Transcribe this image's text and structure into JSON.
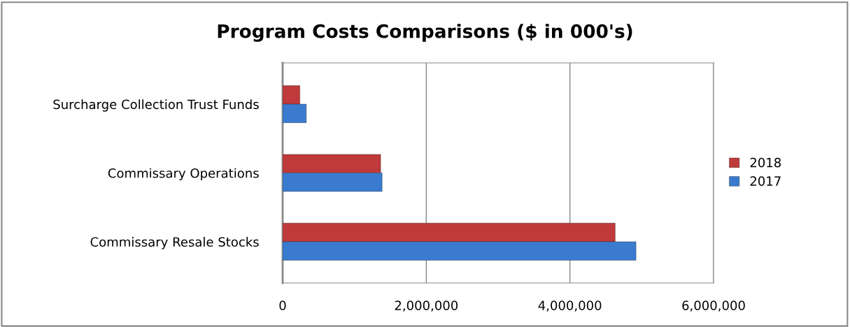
{
  "chart_data": {
    "type": "bar",
    "orientation": "horizontal",
    "title": "Program Costs Comparisons ($ in 000's)",
    "categories": [
      "Surcharge Collection Trust Funds",
      "Commissary Operations",
      "Commissary Resale Stocks"
    ],
    "series": [
      {
        "name": "2018",
        "color": "#c0393b",
        "values": [
          240000,
          1365000,
          4630000
        ]
      },
      {
        "name": "2017",
        "color": "#3a7bd0",
        "values": [
          330000,
          1385000,
          4920000
        ]
      }
    ],
    "xlim": [
      0,
      6000000
    ],
    "xticks": [
      {
        "value": 0,
        "label": "0"
      },
      {
        "value": 2000000,
        "label": "2,000,000"
      },
      {
        "value": 4000000,
        "label": "4,000,000"
      },
      {
        "value": 6000000,
        "label": "6,000,000"
      }
    ],
    "grid": "x",
    "legend": "right"
  }
}
